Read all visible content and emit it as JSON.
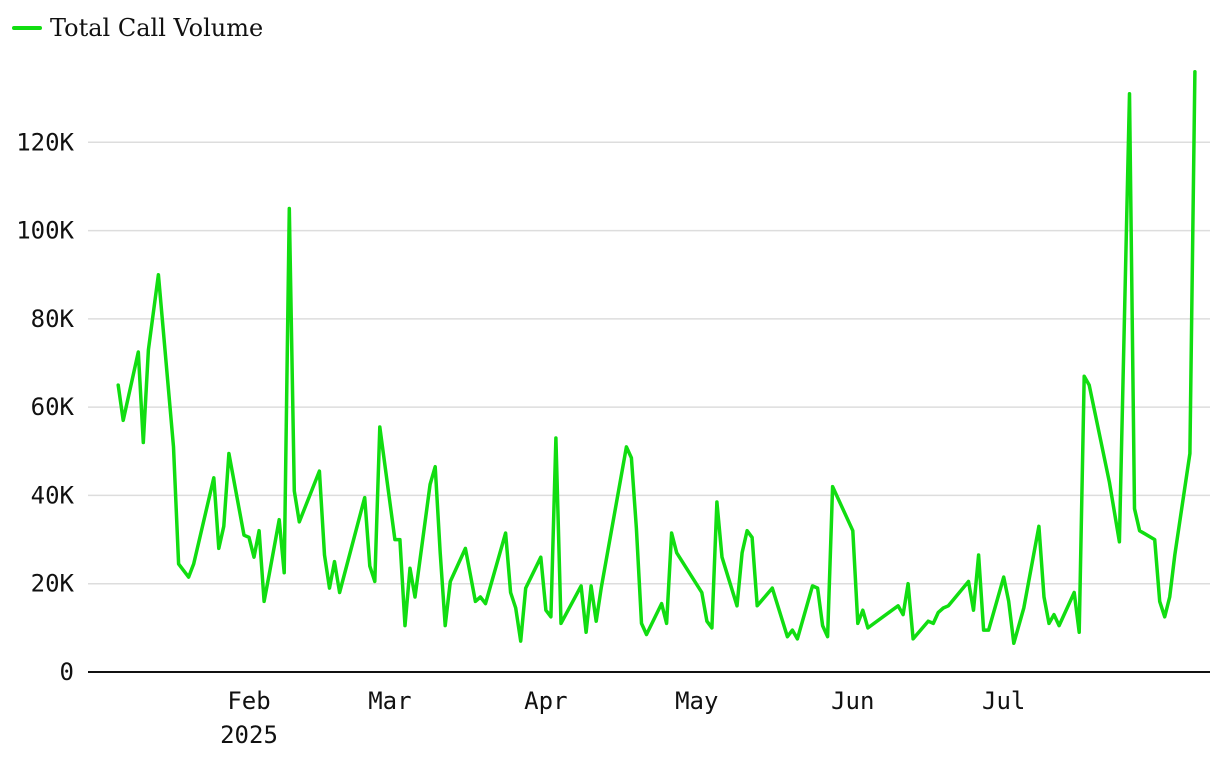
{
  "chart_data": {
    "type": "line",
    "series": [
      {
        "name": "Total Call Volume",
        "color": "#11dd11",
        "points": [
          [
            "2025-01-06",
            65000
          ],
          [
            "2025-01-07",
            57000
          ],
          [
            "2025-01-10",
            72500
          ],
          [
            "2025-01-11",
            52000
          ],
          [
            "2025-01-12",
            73000
          ],
          [
            "2025-01-14",
            90000
          ],
          [
            "2025-01-17",
            51000
          ],
          [
            "2025-01-18",
            24500
          ],
          [
            "2025-01-20",
            21500
          ],
          [
            "2025-01-21",
            24500
          ],
          [
            "2025-01-25",
            44000
          ],
          [
            "2025-01-26",
            28000
          ],
          [
            "2025-01-27",
            33000
          ],
          [
            "2025-01-28",
            49500
          ],
          [
            "2025-01-31",
            31000
          ],
          [
            "2025-02-01",
            30500
          ],
          [
            "2025-02-02",
            26000
          ],
          [
            "2025-02-03",
            32000
          ],
          [
            "2025-02-04",
            16000
          ],
          [
            "2025-02-05",
            22000
          ],
          [
            "2025-02-07",
            34500
          ],
          [
            "2025-02-08",
            22500
          ],
          [
            "2025-02-09",
            105000
          ],
          [
            "2025-02-10",
            41000
          ],
          [
            "2025-02-11",
            34000
          ],
          [
            "2025-02-15",
            45500
          ],
          [
            "2025-02-16",
            26500
          ],
          [
            "2025-02-17",
            19000
          ],
          [
            "2025-02-18",
            25000
          ],
          [
            "2025-02-19",
            18000
          ],
          [
            "2025-02-24",
            39500
          ],
          [
            "2025-02-25",
            24000
          ],
          [
            "2025-02-26",
            20500
          ],
          [
            "2025-02-27",
            55500
          ],
          [
            "2025-03-02",
            30000
          ],
          [
            "2025-03-03",
            30000
          ],
          [
            "2025-03-04",
            10500
          ],
          [
            "2025-03-05",
            23500
          ],
          [
            "2025-03-06",
            17000
          ],
          [
            "2025-03-09",
            42500
          ],
          [
            "2025-03-10",
            46500
          ],
          [
            "2025-03-11",
            27000
          ],
          [
            "2025-03-12",
            10500
          ],
          [
            "2025-03-13",
            20500
          ],
          [
            "2025-03-16",
            28000
          ],
          [
            "2025-03-18",
            16000
          ],
          [
            "2025-03-19",
            17000
          ],
          [
            "2025-03-20",
            15500
          ],
          [
            "2025-03-24",
            31500
          ],
          [
            "2025-03-25",
            18000
          ],
          [
            "2025-03-26",
            14500
          ],
          [
            "2025-03-27",
            7000
          ],
          [
            "2025-03-28",
            19000
          ],
          [
            "2025-03-31",
            26000
          ],
          [
            "2025-04-01",
            14000
          ],
          [
            "2025-04-02",
            12500
          ],
          [
            "2025-04-03",
            53000
          ],
          [
            "2025-04-04",
            11000
          ],
          [
            "2025-04-08",
            19500
          ],
          [
            "2025-04-09",
            9000
          ],
          [
            "2025-04-10",
            19500
          ],
          [
            "2025-04-11",
            11500
          ],
          [
            "2025-04-12",
            19000
          ],
          [
            "2025-04-17",
            51000
          ],
          [
            "2025-04-18",
            48500
          ],
          [
            "2025-04-19",
            32500
          ],
          [
            "2025-04-20",
            11000
          ],
          [
            "2025-04-21",
            8500
          ],
          [
            "2025-04-24",
            15500
          ],
          [
            "2025-04-25",
            11000
          ],
          [
            "2025-04-26",
            31500
          ],
          [
            "2025-04-27",
            27000
          ],
          [
            "2025-05-02",
            18000
          ],
          [
            "2025-05-03",
            11500
          ],
          [
            "2025-05-04",
            10000
          ],
          [
            "2025-05-05",
            38500
          ],
          [
            "2025-05-06",
            26000
          ],
          [
            "2025-05-09",
            15000
          ],
          [
            "2025-05-10",
            27000
          ],
          [
            "2025-05-11",
            32000
          ],
          [
            "2025-05-12",
            30500
          ],
          [
            "2025-05-13",
            15000
          ],
          [
            "2025-05-16",
            19000
          ],
          [
            "2025-05-19",
            8000
          ],
          [
            "2025-05-20",
            9500
          ],
          [
            "2025-05-21",
            7500
          ],
          [
            "2025-05-24",
            19500
          ],
          [
            "2025-05-25",
            19000
          ],
          [
            "2025-05-26",
            10500
          ],
          [
            "2025-05-27",
            8000
          ],
          [
            "2025-05-28",
            42000
          ],
          [
            "2025-06-01",
            32000
          ],
          [
            "2025-06-02",
            11000
          ],
          [
            "2025-06-03",
            14000
          ],
          [
            "2025-06-04",
            10000
          ],
          [
            "2025-06-10",
            15000
          ],
          [
            "2025-06-11",
            13000
          ],
          [
            "2025-06-12",
            20000
          ],
          [
            "2025-06-13",
            7500
          ],
          [
            "2025-06-16",
            11500
          ],
          [
            "2025-06-17",
            11000
          ],
          [
            "2025-06-18",
            13500
          ],
          [
            "2025-06-19",
            14500
          ],
          [
            "2025-06-20",
            15000
          ],
          [
            "2025-06-24",
            20500
          ],
          [
            "2025-06-25",
            14000
          ],
          [
            "2025-06-26",
            26500
          ],
          [
            "2025-06-27",
            9500
          ],
          [
            "2025-06-28",
            9500
          ],
          [
            "2025-07-01",
            21500
          ],
          [
            "2025-07-02",
            16000
          ],
          [
            "2025-07-03",
            6500
          ],
          [
            "2025-07-05",
            14500
          ],
          [
            "2025-07-08",
            33000
          ],
          [
            "2025-07-09",
            17000
          ],
          [
            "2025-07-10",
            11000
          ],
          [
            "2025-07-11",
            13000
          ],
          [
            "2025-07-12",
            10500
          ],
          [
            "2025-07-15",
            18000
          ],
          [
            "2025-07-16",
            9000
          ],
          [
            "2025-07-17",
            67000
          ],
          [
            "2025-07-18",
            65000
          ],
          [
            "2025-07-22",
            43000
          ],
          [
            "2025-07-24",
            29500
          ],
          [
            "2025-07-26",
            131000
          ],
          [
            "2025-07-27",
            37000
          ],
          [
            "2025-07-28",
            32000
          ],
          [
            "2025-07-31",
            30000
          ],
          [
            "2025-08-01",
            16000
          ],
          [
            "2025-08-02",
            12500
          ],
          [
            "2025-08-03",
            17000
          ],
          [
            "2025-08-04",
            26500
          ],
          [
            "2025-08-07",
            49500
          ],
          [
            "2025-08-08",
            136000
          ]
        ]
      }
    ],
    "y_ticks": [
      {
        "value": 0,
        "label": "0"
      },
      {
        "value": 20000,
        "label": "20K"
      },
      {
        "value": 40000,
        "label": "40K"
      },
      {
        "value": 60000,
        "label": "60K"
      },
      {
        "value": 80000,
        "label": "80K"
      },
      {
        "value": 100000,
        "label": "100K"
      },
      {
        "value": 120000,
        "label": "120K"
      }
    ],
    "x_ticks": [
      {
        "date": "2025-02-01",
        "label": "Feb",
        "sublabel": "2025"
      },
      {
        "date": "2025-03-01",
        "label": "Mar",
        "sublabel": ""
      },
      {
        "date": "2025-04-01",
        "label": "Apr",
        "sublabel": ""
      },
      {
        "date": "2025-05-01",
        "label": "May",
        "sublabel": ""
      },
      {
        "date": "2025-06-01",
        "label": "Jun",
        "sublabel": ""
      },
      {
        "date": "2025-07-01",
        "label": "Jul",
        "sublabel": ""
      }
    ],
    "xlim": [
      "2024-12-31",
      "2025-08-11"
    ],
    "ylim": [
      0,
      140000
    ],
    "grid": "horizontal",
    "legend_position": "top-left",
    "gridline_color": "#dddddd",
    "axis_color": "#111111"
  }
}
